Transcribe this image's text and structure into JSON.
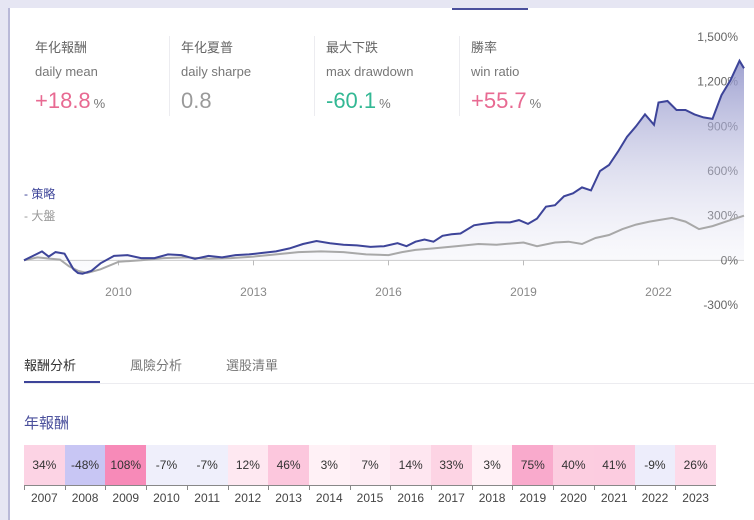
{
  "metrics": [
    {
      "zh": "年化報酬",
      "en": "daily mean",
      "value": "+18.8",
      "unit": "%",
      "tone": "pos"
    },
    {
      "zh": "年化夏普",
      "en": "daily sharpe",
      "value": "0.8",
      "unit": "",
      "tone": "neu"
    },
    {
      "zh": "最大下跌",
      "en": "max drawdown",
      "value": "-60.1",
      "unit": "%",
      "tone": "neg"
    },
    {
      "zh": "勝率",
      "en": "win ratio",
      "value": "+55.7",
      "unit": "%",
      "tone": "pos"
    }
  ],
  "legend": [
    "-  策略",
    "-  大盤"
  ],
  "tabs": [
    "報酬分析",
    "風險分析",
    "選股清單"
  ],
  "section_title": "年報酬",
  "colors": {
    "strategy": "#3d4499",
    "benchmark": "#a8a8a8",
    "positive": "#e86a92",
    "negative": "#33b894",
    "grid": "#c8c8c8"
  },
  "chart_data": [
    {
      "type": "area",
      "x_ticks": [
        "2010",
        "2013",
        "2016",
        "2019",
        "2022"
      ],
      "x_tick_years": [
        2010,
        2013,
        2016,
        2019,
        2022
      ],
      "y_ticks": [
        "1,500%",
        "1,200%",
        "900%",
        "600%",
        "300%",
        "0%",
        "-300%"
      ],
      "y_tick_values": [
        1500,
        1200,
        900,
        600,
        300,
        0,
        -300
      ],
      "xlim": [
        2007.9,
        2023.9
      ],
      "ylim": [
        -300,
        1500
      ],
      "series": [
        {
          "name": "策略",
          "x": [
            2007.9,
            2008.1,
            2008.3,
            2008.45,
            2008.6,
            2008.8,
            2009.0,
            2009.1,
            2009.2,
            2009.4,
            2009.6,
            2009.9,
            2010.2,
            2010.5,
            2010.8,
            2011.1,
            2011.4,
            2011.7,
            2012.0,
            2012.3,
            2012.6,
            2012.9,
            2013.2,
            2013.5,
            2013.8,
            2014.1,
            2014.4,
            2014.7,
            2015.0,
            2015.3,
            2015.6,
            2015.9,
            2016.2,
            2016.4,
            2016.6,
            2016.8,
            2017.0,
            2017.2,
            2017.4,
            2017.6,
            2017.9,
            2018.1,
            2018.4,
            2018.7,
            2018.9,
            2019.1,
            2019.3,
            2019.5,
            2019.7,
            2019.9,
            2020.1,
            2020.3,
            2020.5,
            2020.7,
            2020.9,
            2021.1,
            2021.3,
            2021.5,
            2021.7,
            2021.9,
            2022.0,
            2022.2,
            2022.4,
            2022.6,
            2022.8,
            2023.0,
            2023.2,
            2023.4,
            2023.6,
            2023.8,
            2023.9
          ],
          "values": [
            0,
            30,
            60,
            25,
            55,
            45,
            -60,
            -85,
            -90,
            -70,
            -20,
            30,
            35,
            15,
            15,
            40,
            35,
            10,
            30,
            20,
            35,
            40,
            50,
            60,
            80,
            110,
            130,
            115,
            105,
            100,
            90,
            95,
            115,
            95,
            125,
            140,
            125,
            165,
            175,
            180,
            235,
            245,
            255,
            255,
            270,
            245,
            280,
            360,
            370,
            430,
            450,
            490,
            470,
            600,
            640,
            730,
            830,
            900,
            980,
            910,
            1060,
            1070,
            1010,
            1010,
            980,
            960,
            950,
            1110,
            1210,
            1340,
            1290
          ]
        },
        {
          "name": "大盤",
          "x": [
            2007.9,
            2008.2,
            2008.5,
            2008.7,
            2008.9,
            2009.1,
            2009.3,
            2009.6,
            2010.0,
            2010.5,
            2011.0,
            2011.5,
            2012.0,
            2012.5,
            2013.0,
            2013.5,
            2014.0,
            2014.5,
            2015.0,
            2015.5,
            2016.0,
            2016.3,
            2016.6,
            2017.0,
            2017.5,
            2018.0,
            2018.4,
            2018.8,
            2019.0,
            2019.3,
            2019.7,
            2020.0,
            2020.3,
            2020.6,
            2020.9,
            2021.2,
            2021.5,
            2021.8,
            2022.0,
            2022.3,
            2022.6,
            2022.9,
            2023.2,
            2023.5,
            2023.9
          ],
          "values": [
            0,
            20,
            10,
            5,
            -40,
            -70,
            -85,
            -60,
            -10,
            0,
            15,
            20,
            10,
            15,
            25,
            40,
            55,
            60,
            55,
            40,
            35,
            55,
            70,
            80,
            95,
            110,
            105,
            115,
            120,
            95,
            120,
            125,
            110,
            150,
            170,
            210,
            240,
            260,
            270,
            285,
            260,
            210,
            230,
            260,
            300
          ]
        }
      ]
    },
    {
      "type": "heatmap",
      "title": "年報酬",
      "categories": [
        "2007",
        "2008",
        "2009",
        "2010",
        "2011",
        "2012",
        "2013",
        "2014",
        "2015",
        "2016",
        "2017",
        "2018",
        "2019",
        "2020",
        "2021",
        "2022",
        "2023"
      ],
      "values": [
        34,
        -48,
        108,
        -7,
        -7,
        12,
        46,
        3,
        7,
        14,
        33,
        3,
        75,
        40,
        41,
        -9,
        26
      ],
      "labels": [
        "34%",
        "-48%",
        "108%",
        "-7%",
        "-7%",
        "12%",
        "46%",
        "3%",
        "7%",
        "14%",
        "33%",
        "3%",
        "75%",
        "40%",
        "41%",
        "-9%",
        "26%"
      ]
    }
  ]
}
